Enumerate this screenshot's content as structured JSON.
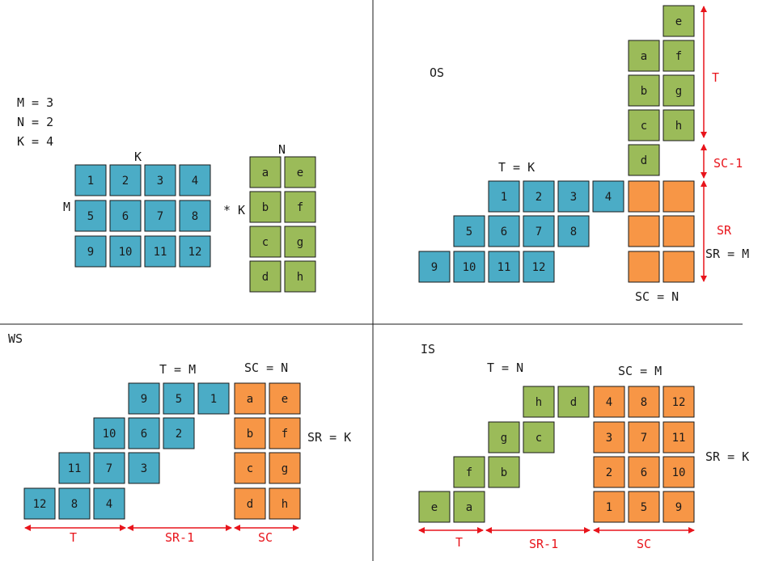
{
  "colors": {
    "blue": "#4bacc6",
    "green": "#9bbb59",
    "orange": "#f79646",
    "border": "#1a1a1a",
    "red": "#e8141b"
  },
  "q1": {
    "params": [
      "M = 3",
      "N = 2",
      "K = 4"
    ],
    "k_label": "K",
    "m_label": "M",
    "n_label": "N",
    "times_k": "* K",
    "matrix_a": [
      "1",
      "2",
      "3",
      "4",
      "5",
      "6",
      "7",
      "8",
      "9",
      "10",
      "11",
      "12"
    ],
    "matrix_b": [
      "a",
      "e",
      "b",
      "f",
      "c",
      "g",
      "d",
      "h"
    ]
  },
  "q2": {
    "title": "OS",
    "t_eq": "T = K",
    "green_col1": [
      "a",
      "b",
      "c",
      "d"
    ],
    "green_col2": [
      "e",
      "f",
      "g",
      "h"
    ],
    "blue_rows": [
      [
        "1",
        "2",
        "3",
        "4"
      ],
      [
        "5",
        "6",
        "7",
        "8"
      ],
      [
        "9",
        "10",
        "11",
        "12"
      ]
    ],
    "label_t": "T",
    "label_sc1": "SC-1",
    "label_sr": "SR",
    "label_sr_m": "SR = M",
    "label_sc_n": "SC = N"
  },
  "q3": {
    "title": "WS",
    "t_eq": "T = M",
    "sc_eq": "SC = N",
    "sr_eq": "SR = K",
    "blue_rows": [
      [
        "9",
        "5",
        "1"
      ],
      [
        "10",
        "6",
        "2"
      ],
      [
        "11",
        "7",
        "3"
      ],
      [
        "12",
        "8",
        "4"
      ]
    ],
    "orange_rows": [
      [
        "a",
        "e"
      ],
      [
        "b",
        "f"
      ],
      [
        "c",
        "g"
      ],
      [
        "d",
        "h"
      ]
    ],
    "arrow_t": "T",
    "arrow_sr1": "SR-1",
    "arrow_sc": "SC"
  },
  "q4": {
    "title": "IS",
    "t_eq": "T = N",
    "sc_eq": "SC = M",
    "sr_eq": "SR = K",
    "green_rows": [
      [
        "h",
        "d"
      ],
      [
        "g",
        "c"
      ],
      [
        "f",
        "b"
      ],
      [
        "e",
        "a"
      ]
    ],
    "orange_rows": [
      [
        "4",
        "8",
        "12"
      ],
      [
        "3",
        "7",
        "11"
      ],
      [
        "2",
        "6",
        "10"
      ],
      [
        "1",
        "5",
        "9"
      ]
    ],
    "arrow_t": "T",
    "arrow_sr1": "SR-1",
    "arrow_sc": "SC"
  }
}
